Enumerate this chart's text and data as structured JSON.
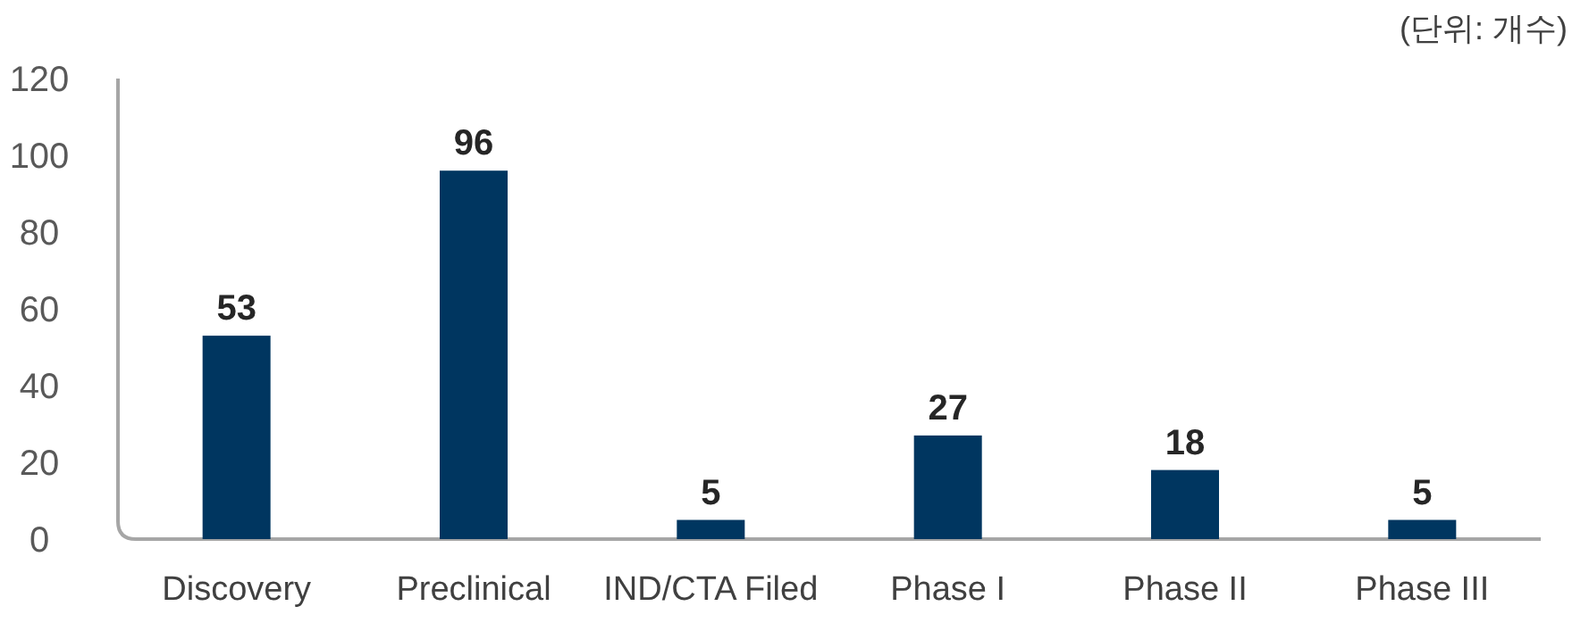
{
  "chart_data": {
    "type": "bar",
    "categories": [
      "Discovery",
      "Preclinical",
      "IND/CTA Filed",
      "Phase I",
      "Phase II",
      "Phase III"
    ],
    "values": [
      53,
      96,
      5,
      27,
      18,
      5
    ],
    "color": "#003660",
    "ylim": [
      0,
      120
    ],
    "yticks": [
      0,
      20,
      40,
      60,
      80,
      100,
      120
    ],
    "data_labels": true,
    "annotations": [
      "(단위: 개수)"
    ]
  }
}
